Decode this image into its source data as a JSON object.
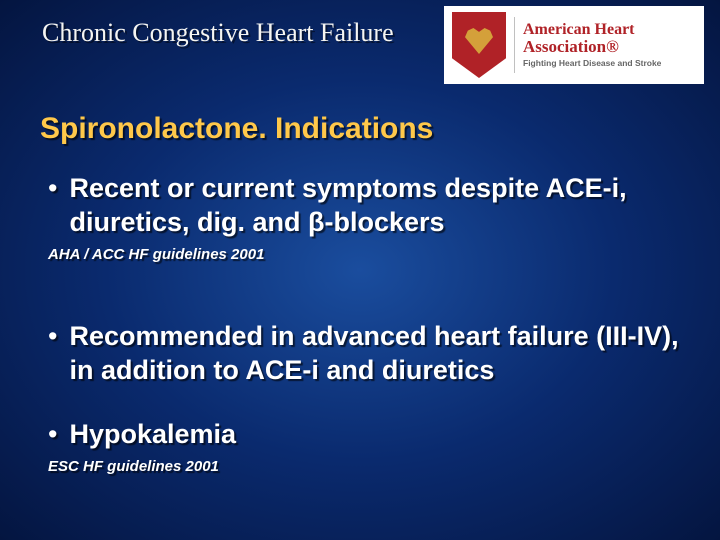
{
  "header": {
    "title": "Chronic Congestive Heart Failure"
  },
  "logo": {
    "line1": "American Heart",
    "line2": "Association®",
    "tagline": "Fighting Heart Disease and Stroke"
  },
  "section_title": "Spironolactone. Indications",
  "bullets": [
    {
      "text": "Recent or current symptoms despite ACE-i, diuretics, dig. and β-blockers",
      "citation": "AHA / ACC HF guidelines 2001"
    },
    {
      "text": "Recommended in advanced heart failure (III-IV), in addition to ACE-i and diuretics",
      "citation": null
    },
    {
      "text": "Hypokalemia",
      "citation": "ESC HF guidelines 2001"
    }
  ],
  "colors": {
    "accent": "#ffc84a",
    "bg_inner": "#1a4d9e",
    "bg_outer": "#041540",
    "logo_red": "#b02227"
  }
}
